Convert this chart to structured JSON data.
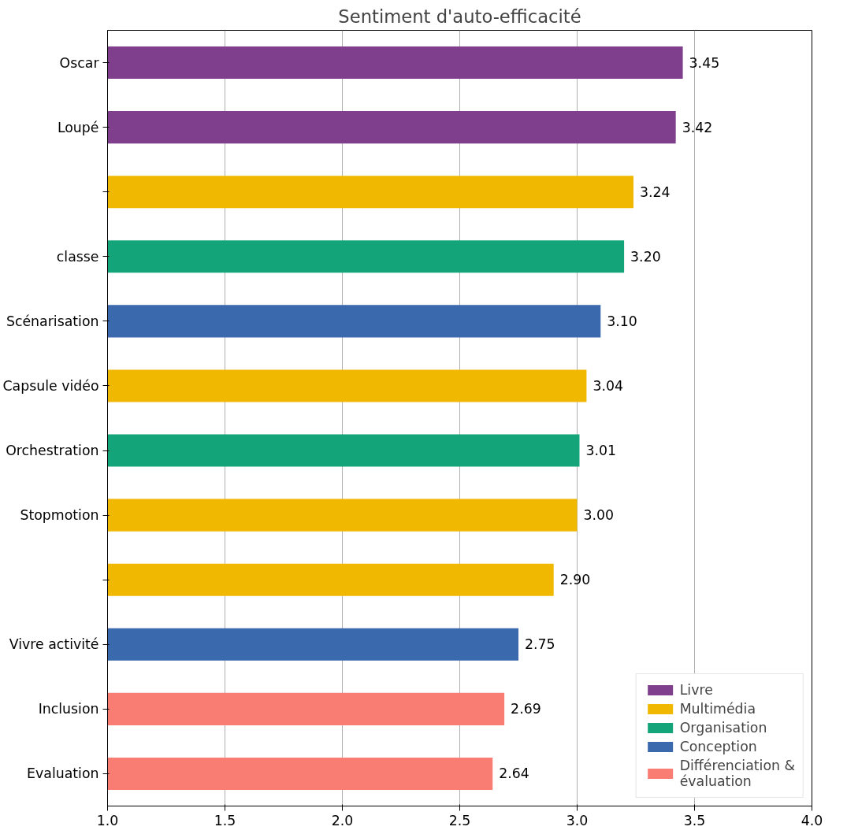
{
  "chart_data": {
    "type": "bar",
    "orientation": "horizontal",
    "title": "Sentiment d'auto-efficacité",
    "categories": [
      "Oscar",
      "Loupé",
      null,
      "classe",
      "Scénarisation",
      "Capsule vidéo",
      "Orchestration",
      "Stopmotion",
      null,
      "Vivre activité",
      "Inclusion",
      "Evaluation"
    ],
    "series": [
      {
        "name": "Livre",
        "color": "#7f3f8c",
        "values": [
          3.45,
          3.42,
          null,
          null,
          null,
          null,
          null,
          null,
          null,
          null,
          null,
          null
        ],
        "value_labels": [
          "3.45",
          "3.42",
          null,
          null,
          null,
          null,
          null,
          null,
          null,
          null,
          null,
          null
        ]
      },
      {
        "name": "Multimédia",
        "color": "#f0b800",
        "values": [
          null,
          null,
          3.24,
          null,
          null,
          3.04,
          null,
          3.0,
          2.9,
          null,
          null,
          null
        ],
        "value_labels": [
          null,
          null,
          "3.24",
          null,
          null,
          "3.04",
          null,
          "3.00",
          "2.90",
          null,
          null,
          null
        ]
      },
      {
        "name": "Organisation",
        "color": "#13a579",
        "values": [
          null,
          null,
          null,
          3.2,
          null,
          null,
          3.01,
          null,
          null,
          null,
          null,
          null
        ],
        "value_labels": [
          null,
          null,
          null,
          "3.20",
          null,
          null,
          "3.01",
          null,
          null,
          null,
          null,
          null
        ]
      },
      {
        "name": "Conception",
        "color": "#3a69ae",
        "values": [
          null,
          null,
          null,
          null,
          3.1,
          null,
          null,
          null,
          null,
          2.75,
          null,
          null
        ],
        "value_labels": [
          null,
          null,
          null,
          null,
          "3.10",
          null,
          null,
          null,
          null,
          "2.75",
          null,
          null
        ]
      },
      {
        "name": "Différenciation & évaluation",
        "color": "#fa7d73",
        "values": [
          null,
          null,
          null,
          null,
          null,
          null,
          null,
          null,
          null,
          null,
          2.69,
          2.64
        ],
        "value_labels": [
          null,
          null,
          null,
          null,
          null,
          null,
          null,
          null,
          null,
          null,
          "2.69",
          "2.64"
        ]
      }
    ],
    "xlim": [
      1,
      4
    ],
    "xticks": [
      {
        "value": 1,
        "label": "1.0"
      },
      {
        "value": 1.5,
        "label": "1.5"
      },
      {
        "value": 2,
        "label": "2.0"
      },
      {
        "value": 2.5,
        "label": "2.5"
      },
      {
        "value": 3,
        "label": "3.0"
      },
      {
        "value": 3.5,
        "label": "3.5"
      },
      {
        "value": 4,
        "label": "4.0"
      }
    ],
    "grid": "x",
    "legend": "bottom right"
  }
}
